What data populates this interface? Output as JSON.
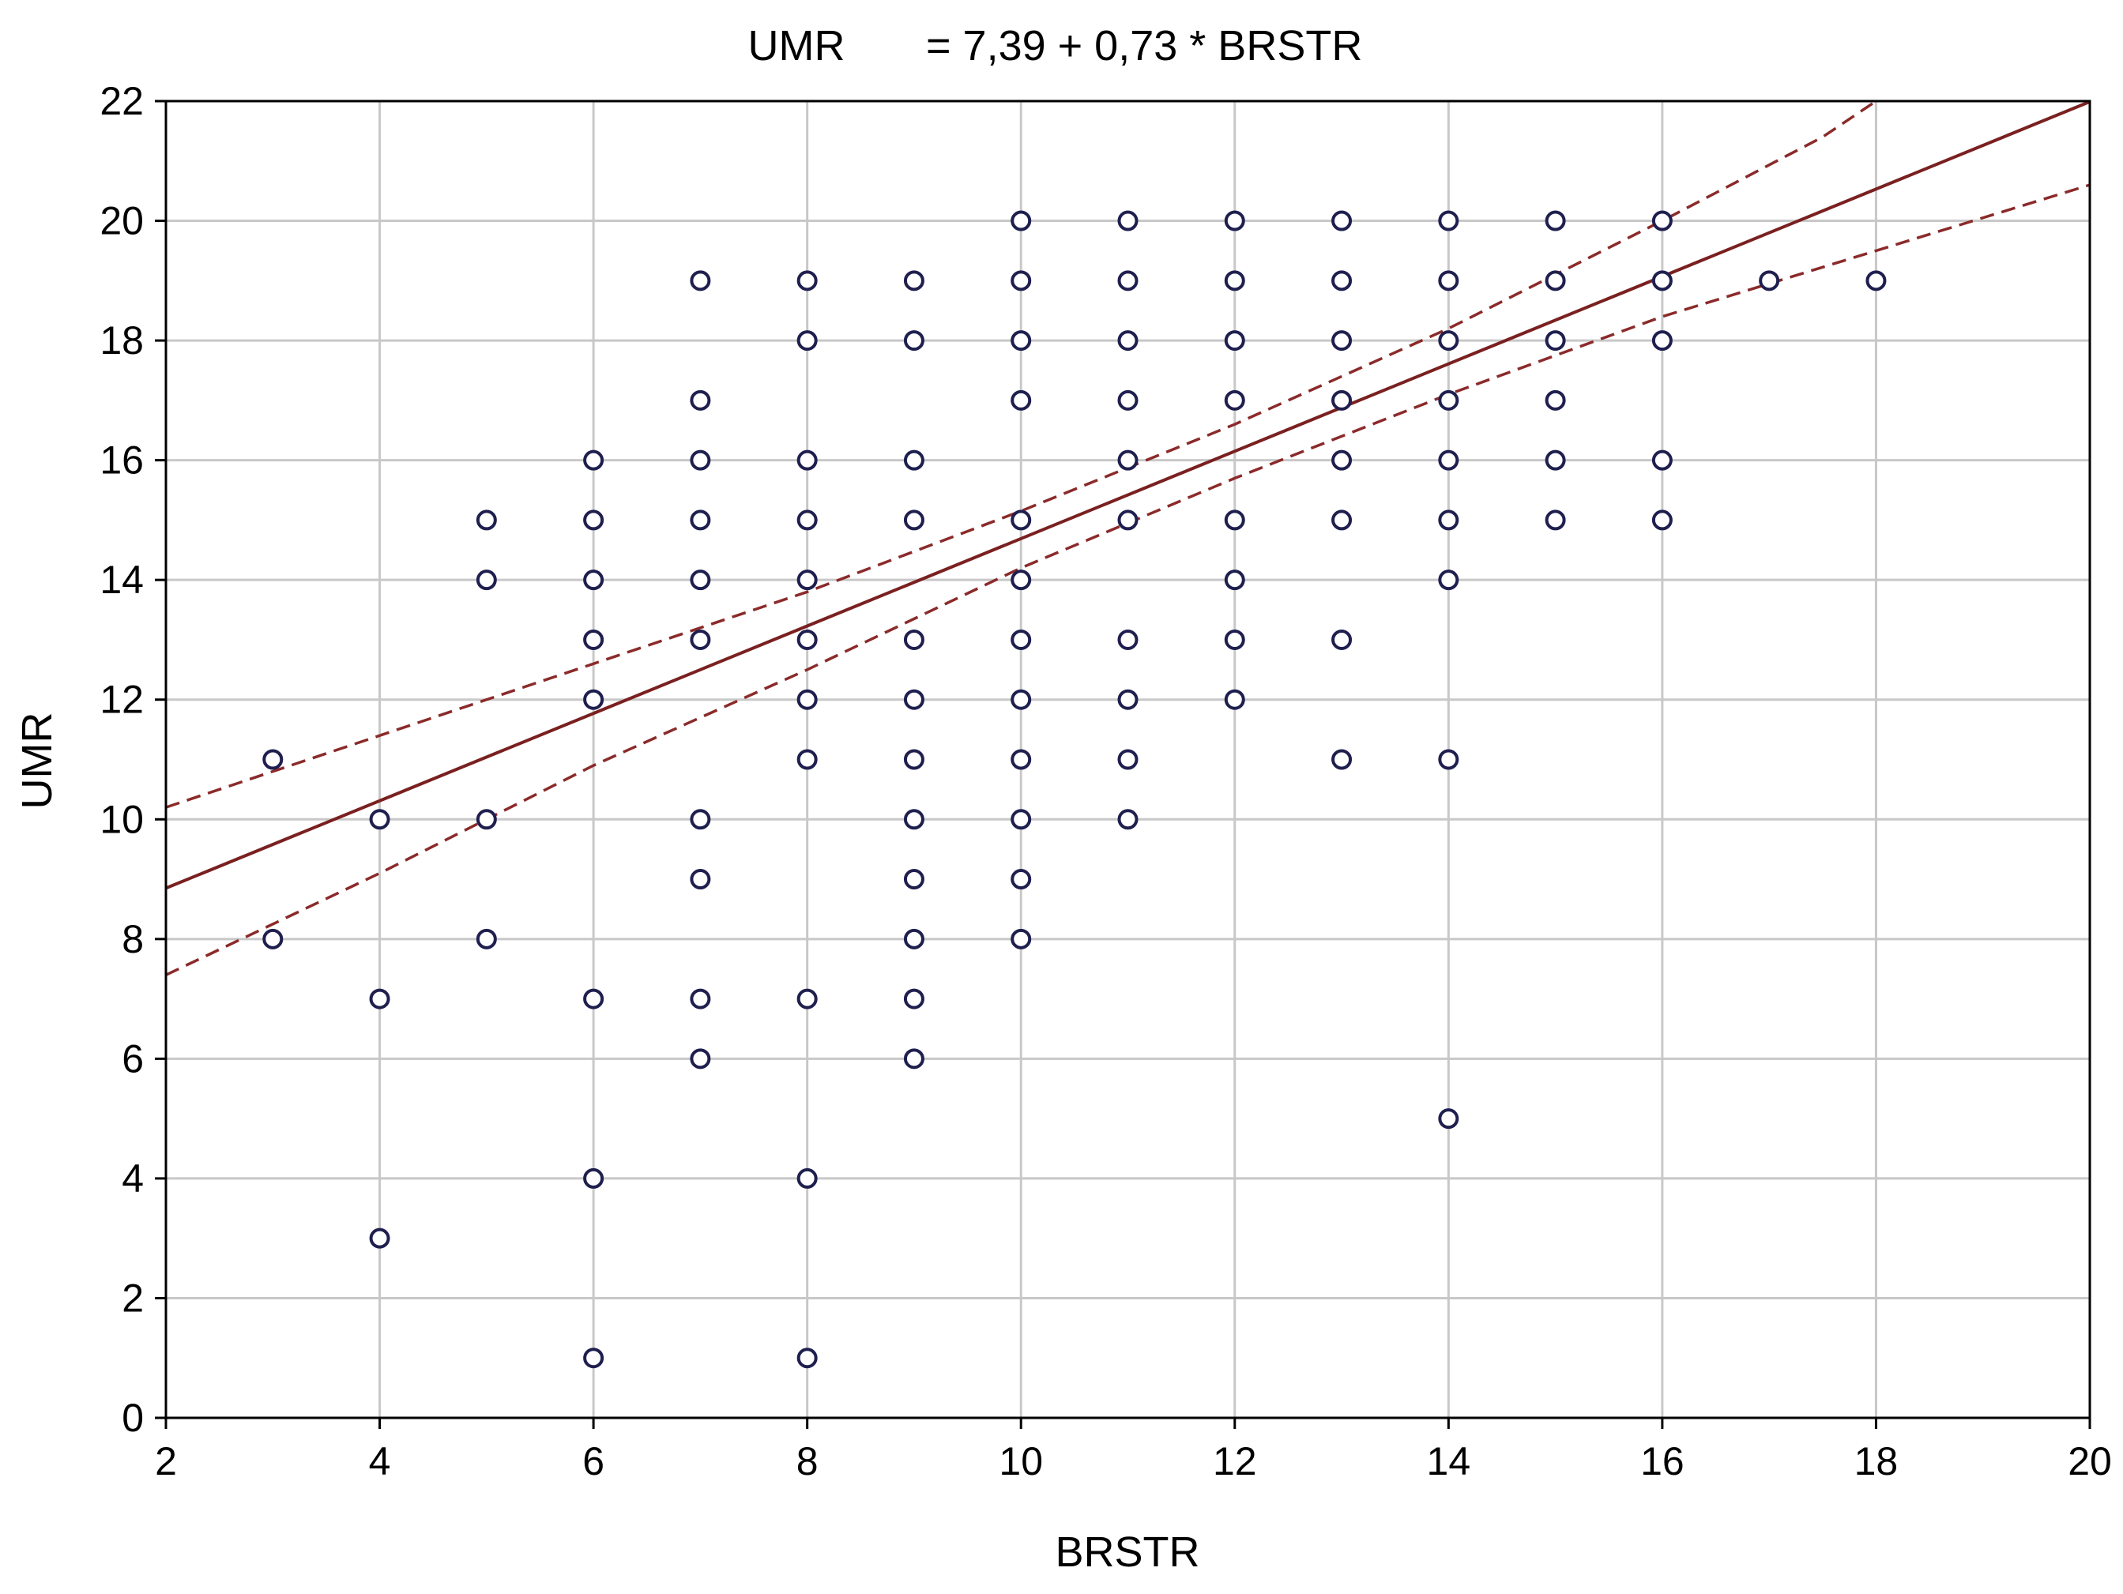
{
  "chart_data": {
    "type": "scatter",
    "title_left": "UMR",
    "title_right": "= 7,39 + 0,73 * BRSTR",
    "xlabel": "BRSTR",
    "ylabel": "UMR",
    "xlim": [
      2,
      20
    ],
    "ylim": [
      0,
      22
    ],
    "x_ticks": [
      2,
      4,
      6,
      8,
      10,
      12,
      14,
      16,
      18,
      20
    ],
    "y_ticks": [
      0,
      2,
      4,
      6,
      8,
      10,
      12,
      14,
      16,
      18,
      20,
      22
    ],
    "grid": true,
    "points": [
      [
        3,
        11
      ],
      [
        3,
        8
      ],
      [
        4,
        10
      ],
      [
        4,
        7
      ],
      [
        4,
        3
      ],
      [
        5,
        15
      ],
      [
        5,
        14
      ],
      [
        5,
        10
      ],
      [
        5,
        8
      ],
      [
        6,
        16
      ],
      [
        6,
        15
      ],
      [
        6,
        14
      ],
      [
        6,
        13
      ],
      [
        6,
        12
      ],
      [
        6,
        7
      ],
      [
        6,
        4
      ],
      [
        6,
        1
      ],
      [
        7,
        19
      ],
      [
        7,
        17
      ],
      [
        7,
        16
      ],
      [
        7,
        15
      ],
      [
        7,
        14
      ],
      [
        7,
        13
      ],
      [
        7,
        10
      ],
      [
        7,
        9
      ],
      [
        7,
        7
      ],
      [
        7,
        6
      ],
      [
        8,
        19
      ],
      [
        8,
        18
      ],
      [
        8,
        16
      ],
      [
        8,
        15
      ],
      [
        8,
        14
      ],
      [
        8,
        13
      ],
      [
        8,
        12
      ],
      [
        8,
        11
      ],
      [
        8,
        7
      ],
      [
        8,
        4
      ],
      [
        8,
        1
      ],
      [
        9,
        19
      ],
      [
        9,
        18
      ],
      [
        9,
        16
      ],
      [
        9,
        15
      ],
      [
        9,
        13
      ],
      [
        9,
        12
      ],
      [
        9,
        11
      ],
      [
        9,
        10
      ],
      [
        9,
        9
      ],
      [
        9,
        8
      ],
      [
        9,
        7
      ],
      [
        9,
        6
      ],
      [
        10,
        20
      ],
      [
        10,
        19
      ],
      [
        10,
        18
      ],
      [
        10,
        17
      ],
      [
        10,
        15
      ],
      [
        10,
        14
      ],
      [
        10,
        13
      ],
      [
        10,
        12
      ],
      [
        10,
        11
      ],
      [
        10,
        10
      ],
      [
        10,
        9
      ],
      [
        10,
        8
      ],
      [
        11,
        20
      ],
      [
        11,
        19
      ],
      [
        11,
        18
      ],
      [
        11,
        17
      ],
      [
        11,
        16
      ],
      [
        11,
        15
      ],
      [
        11,
        13
      ],
      [
        11,
        12
      ],
      [
        11,
        11
      ],
      [
        11,
        10
      ],
      [
        12,
        20
      ],
      [
        12,
        19
      ],
      [
        12,
        18
      ],
      [
        12,
        17
      ],
      [
        12,
        15
      ],
      [
        12,
        14
      ],
      [
        12,
        13
      ],
      [
        12,
        12
      ],
      [
        13,
        20
      ],
      [
        13,
        19
      ],
      [
        13,
        18
      ],
      [
        13,
        17
      ],
      [
        13,
        16
      ],
      [
        13,
        15
      ],
      [
        13,
        13
      ],
      [
        13,
        11
      ],
      [
        14,
        20
      ],
      [
        14,
        19
      ],
      [
        14,
        18
      ],
      [
        14,
        17
      ],
      [
        14,
        16
      ],
      [
        14,
        15
      ],
      [
        14,
        14
      ],
      [
        14,
        11
      ],
      [
        14,
        5
      ],
      [
        15,
        20
      ],
      [
        15,
        19
      ],
      [
        15,
        18
      ],
      [
        15,
        17
      ],
      [
        15,
        16
      ],
      [
        15,
        15
      ],
      [
        16,
        20
      ],
      [
        16,
        19
      ],
      [
        16,
        18
      ],
      [
        16,
        16
      ],
      [
        16,
        15
      ],
      [
        17,
        19
      ],
      [
        18,
        19
      ]
    ],
    "regression": {
      "intercept": 7.39,
      "slope": 0.73
    },
    "confidence_band": {
      "upper": [
        [
          2,
          10.2
        ],
        [
          4,
          11.4
        ],
        [
          6,
          12.6
        ],
        [
          8,
          13.8
        ],
        [
          10,
          15.15
        ],
        [
          12,
          16.6
        ],
        [
          14,
          18.2
        ],
        [
          16,
          20.0
        ],
        [
          17.5,
          21.4
        ],
        [
          18,
          22.0
        ]
      ],
      "lower": [
        [
          2,
          7.4
        ],
        [
          4,
          9.1
        ],
        [
          6,
          10.9
        ],
        [
          8,
          12.5
        ],
        [
          10,
          14.2
        ],
        [
          12,
          15.7
        ],
        [
          14,
          17.1
        ],
        [
          16,
          18.4
        ],
        [
          18,
          19.5
        ],
        [
          20,
          20.6
        ]
      ]
    },
    "colors": {
      "points": "#1f1f4f",
      "regression": "#7a2020",
      "band": "#8b2a2a",
      "grid": "#c8c8c8",
      "axis": "#000000"
    }
  }
}
